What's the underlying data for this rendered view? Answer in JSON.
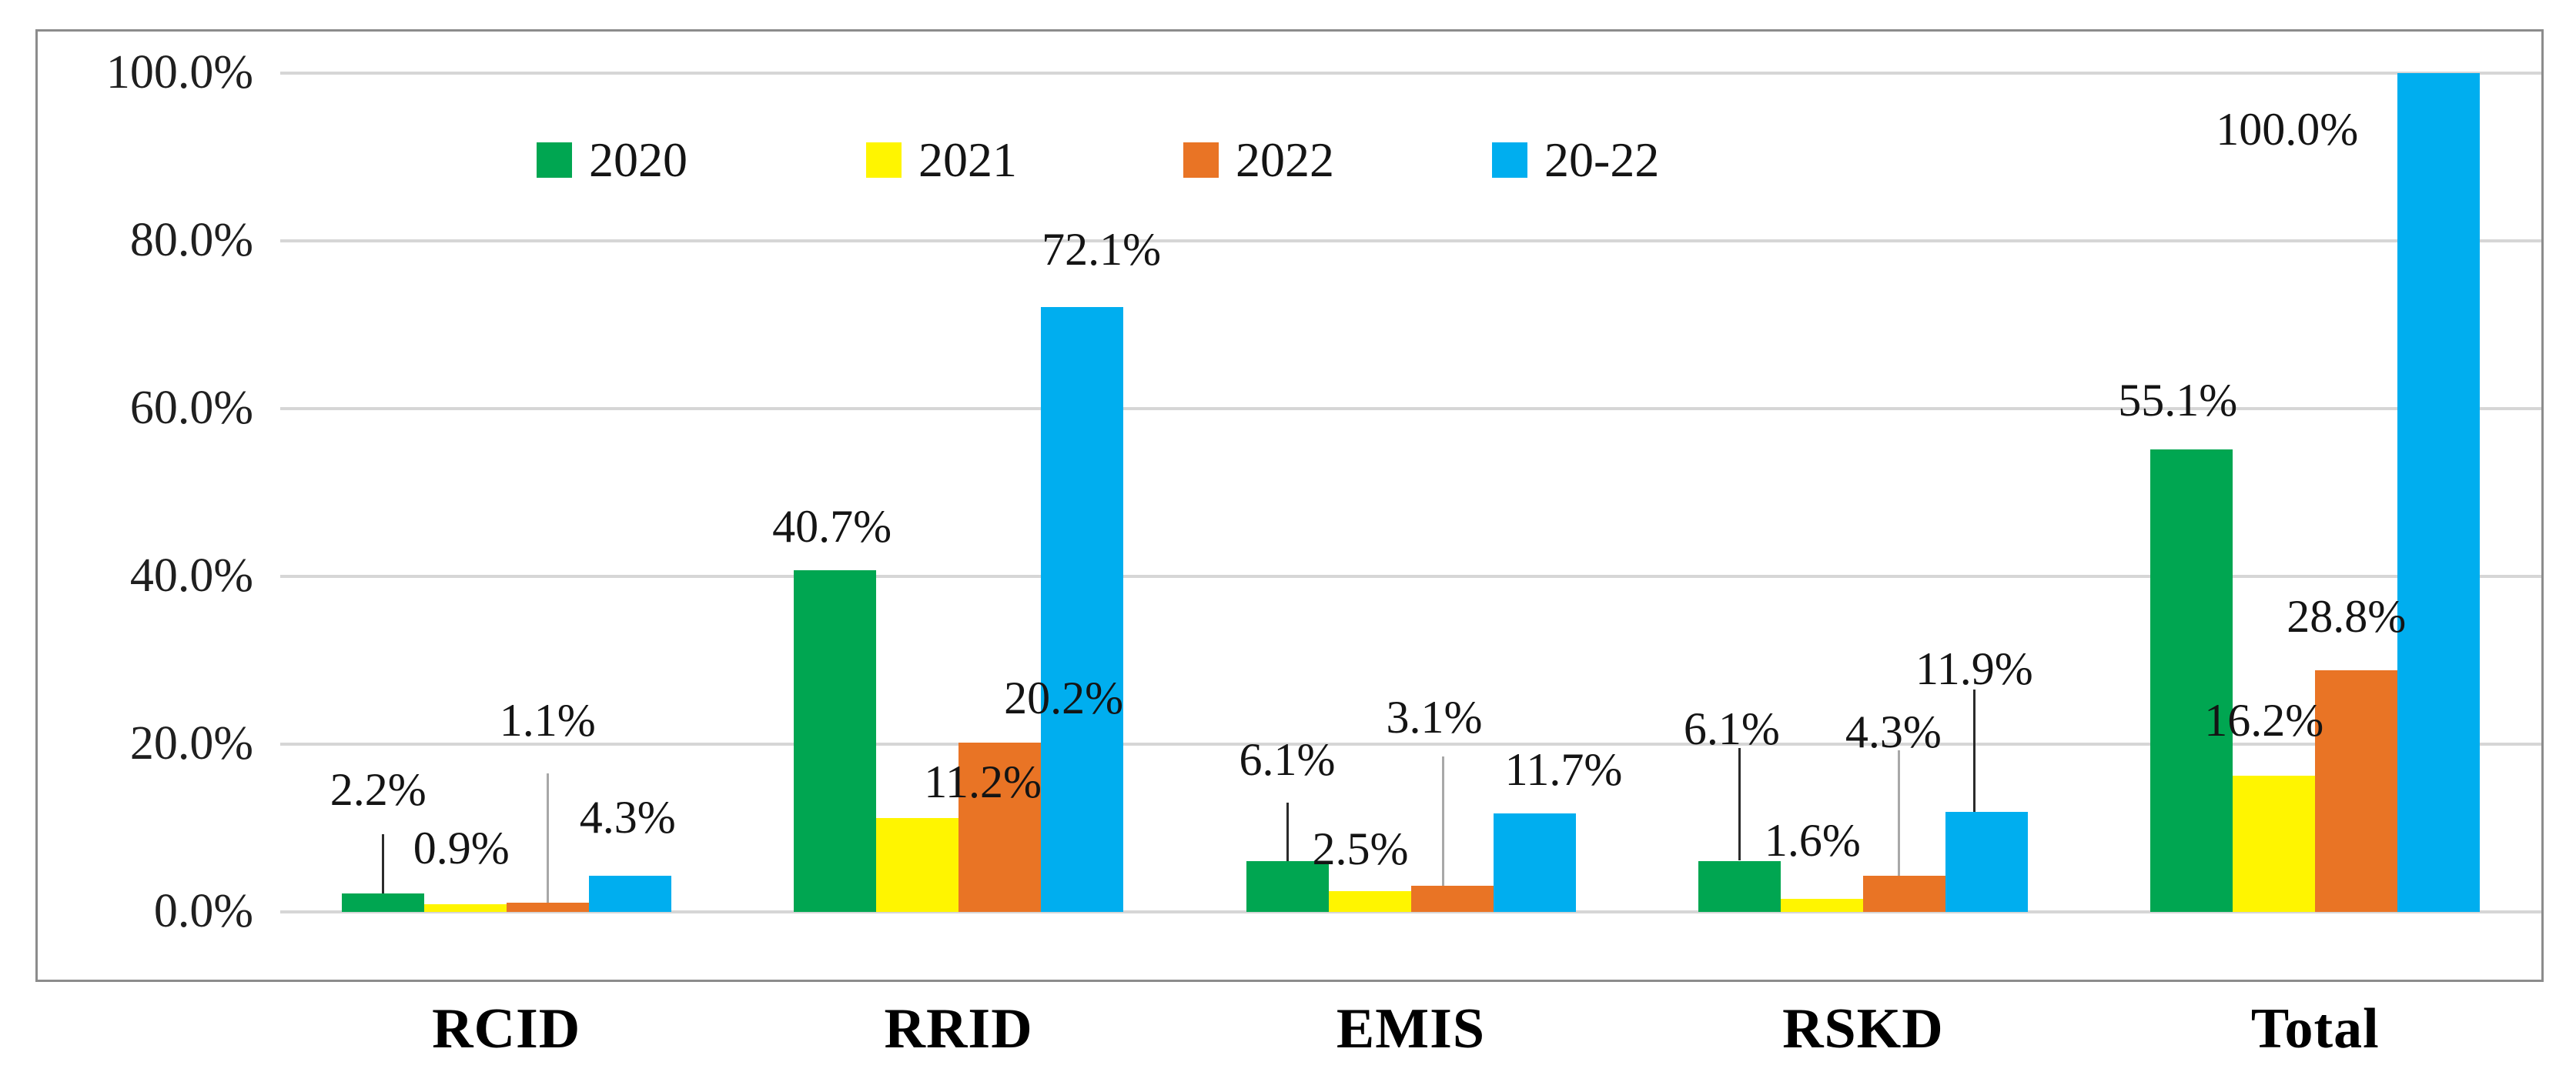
{
  "chart_data": {
    "type": "bar",
    "title": "",
    "xlabel": "",
    "ylabel": "",
    "categories": [
      "RCID",
      "RRID",
      "EMIS",
      "RSKD",
      "Total"
    ],
    "series": [
      {
        "name": "2020",
        "color": "#00A651",
        "values": [
          2.2,
          40.7,
          6.1,
          6.1,
          55.1
        ]
      },
      {
        "name": "2021",
        "color": "#FFF500",
        "values": [
          0.9,
          11.2,
          2.5,
          1.6,
          16.2
        ]
      },
      {
        "name": "2022",
        "color": "#E97425",
        "values": [
          1.1,
          20.2,
          3.1,
          4.3,
          28.8
        ]
      },
      {
        "name": "20-22",
        "color": "#00AEEF",
        "values": [
          4.3,
          72.1,
          11.7,
          11.9,
          100.0
        ]
      }
    ],
    "value_labels": [
      {
        "text": "2.2%",
        "cat": 0,
        "ser": 0,
        "dx": -6,
        "y": 14.6
      },
      {
        "text": "0.9%",
        "cat": 0,
        "ser": 1,
        "dx": -5,
        "y": 7.6
      },
      {
        "text": "1.1%",
        "cat": 0,
        "ser": 2,
        "dx": 0,
        "y": 22.8
      },
      {
        "text": "4.3%",
        "cat": 0,
        "ser": 3,
        "dx": -3,
        "y": 11.3
      },
      {
        "text": "40.7%",
        "cat": 1,
        "ser": 0,
        "dx": -4,
        "y": 46.0
      },
      {
        "text": "11.2%",
        "cat": 1,
        "ser": 1,
        "dx": 85,
        "y": 15.5
      },
      {
        "text": "20.2%",
        "cat": 1,
        "ser": 2,
        "dx": 83,
        "y": 25.5
      },
      {
        "text": "72.1%",
        "cat": 1,
        "ser": 3,
        "dx": 25,
        "y": 79.0
      },
      {
        "text": "6.1%",
        "cat": 2,
        "ser": 0,
        "dx": 0,
        "y": 18.2
      },
      {
        "text": "2.5%",
        "cat": 2,
        "ser": 1,
        "dx": -12,
        "y": 7.5
      },
      {
        "text": "3.1%",
        "cat": 2,
        "ser": 2,
        "dx": -23,
        "y": 23.2
      },
      {
        "text": "11.7%",
        "cat": 2,
        "ser": 3,
        "dx": 38,
        "y": 17.0
      },
      {
        "text": "6.1%",
        "cat": 3,
        "ser": 0,
        "dx": -10,
        "y": 21.8
      },
      {
        "text": "1.6%",
        "cat": 3,
        "ser": 1,
        "dx": -12,
        "y": 8.5
      },
      {
        "text": "4.3%",
        "cat": 3,
        "ser": 2,
        "dx": -14,
        "y": 21.5
      },
      {
        "text": "11.9%",
        "cat": 3,
        "ser": 3,
        "dx": -16,
        "y": 29.0
      },
      {
        "text": "55.1%",
        "cat": 4,
        "ser": 0,
        "dx": -18,
        "y": 61.0
      },
      {
        "text": "16.2%",
        "cat": 4,
        "ser": 1,
        "dx": -13,
        "y": 22.8
      },
      {
        "text": "28.8%",
        "cat": 4,
        "ser": 2,
        "dx": -13,
        "y": 35.2
      },
      {
        "text": "100.0%",
        "cat": 4,
        "ser": 3,
        "dx": -197,
        "y": 93.3
      }
    ],
    "leader_lines": [
      {
        "cat": 0,
        "ser": 0,
        "dx": 0,
        "from": 2.2,
        "to": 9.3,
        "color": "#2b2b2b"
      },
      {
        "cat": 0,
        "ser": 2,
        "dx": 0,
        "from": 1.1,
        "to": 16.5,
        "color": "#a8a8a8"
      },
      {
        "cat": 2,
        "ser": 0,
        "dx": 0,
        "from": 6.1,
        "to": 13.0,
        "color": "#2b2b2b"
      },
      {
        "cat": 2,
        "ser": 2,
        "dx": -12,
        "from": 3.1,
        "to": 18.5,
        "color": "#a8a8a8"
      },
      {
        "cat": 3,
        "ser": 0,
        "dx": 0,
        "from": 6.1,
        "to": 19.5,
        "color": "#2b2b2b"
      },
      {
        "cat": 3,
        "ser": 2,
        "dx": -7,
        "from": 4.3,
        "to": 19.3,
        "color": "#a8a8a8"
      },
      {
        "cat": 3,
        "ser": 3,
        "dx": -16,
        "from": 11.9,
        "to": 26.5,
        "color": "#2b2b2b"
      }
    ],
    "y_ticks": [
      "0.0%",
      "20.0%",
      "40.0%",
      "60.0%",
      "80.0%",
      "100.0%"
    ],
    "ylim": [
      0,
      100
    ],
    "grid": true,
    "legend_position": "top-center",
    "colors": {
      "gridline": "#d6d6d6",
      "border": "#8c8c8c",
      "text": "#141414"
    }
  }
}
